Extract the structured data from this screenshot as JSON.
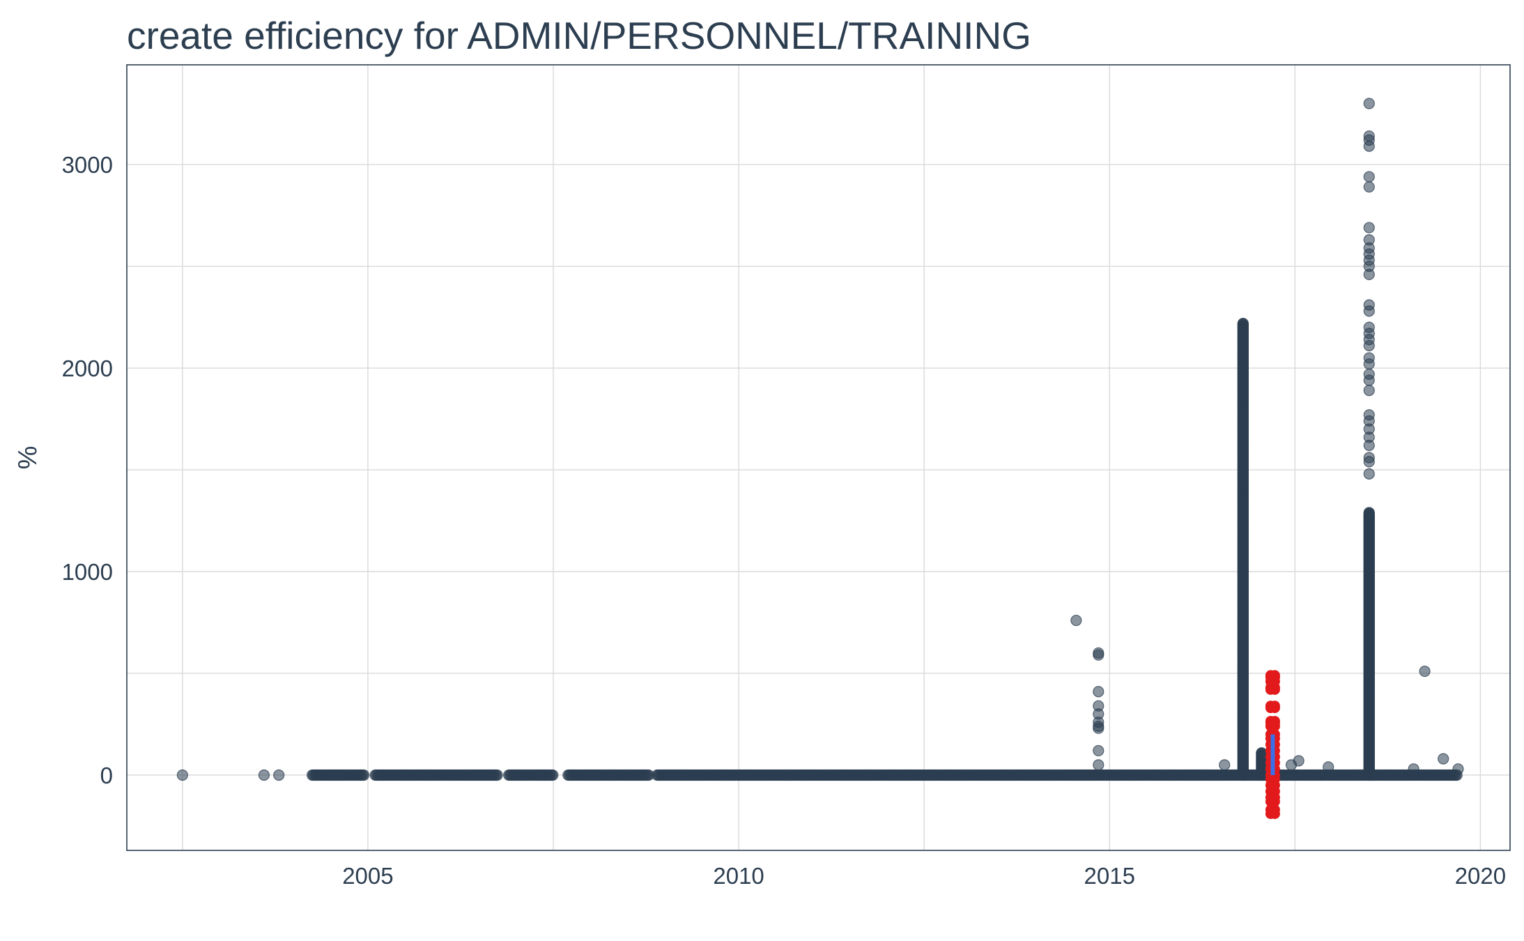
{
  "chart_data": {
    "type": "scatter",
    "title": "create efficiency for ADMIN/PERSONNEL/TRAINING",
    "xlabel": "",
    "ylabel": "%",
    "xlim": [
      2001.75,
      2020.4
    ],
    "ylim": [
      -370,
      3490
    ],
    "x_ticks": [
      2005,
      2010,
      2015,
      2020
    ],
    "x_tick_labels": [
      "2005",
      "2010",
      "2015",
      "2020"
    ],
    "y_ticks": [
      0,
      1000,
      2000,
      3000
    ],
    "y_tick_labels": [
      "0",
      "1000",
      "2000",
      "3000"
    ],
    "grid": true,
    "legend": "none",
    "colors": {
      "points": "#2c3e50",
      "highlight_points": "#e31a1c",
      "highlight_line": "#3a6fe8",
      "grid": "#d9d9d9",
      "text": "#2c3e50"
    },
    "series": [
      {
        "style": "points",
        "isolated_points": [
          [
            2002.5,
            0
          ],
          [
            2003.6,
            0
          ],
          [
            2003.8,
            0
          ],
          [
            2014.55,
            760
          ],
          [
            2014.85,
            600
          ],
          [
            2014.85,
            590
          ],
          [
            2014.85,
            410
          ],
          [
            2014.85,
            340
          ],
          [
            2014.85,
            300
          ],
          [
            2014.85,
            260
          ],
          [
            2014.85,
            240
          ],
          [
            2014.85,
            230
          ],
          [
            2014.85,
            120
          ],
          [
            2014.85,
            50
          ],
          [
            2016.55,
            50
          ],
          [
            2017.45,
            50
          ],
          [
            2017.55,
            70
          ],
          [
            2017.95,
            40
          ],
          [
            2019.25,
            510
          ],
          [
            2019.5,
            80
          ],
          [
            2019.1,
            30
          ],
          [
            2019.7,
            30
          ]
        ],
        "dense_ranges": [
          {
            "x_start": 2004.25,
            "x_end": 2004.95,
            "y": 0
          },
          {
            "x_start": 2005.1,
            "x_end": 2006.75,
            "y": 0
          },
          {
            "x_start": 2006.9,
            "x_end": 2007.5,
            "y": 0
          },
          {
            "x_start": 2007.7,
            "x_end": 2008.8,
            "y": 0
          },
          {
            "x_start": 2008.9,
            "x_end": 2019.7,
            "y": 0
          }
        ],
        "vertical_clusters": [
          {
            "x": 2016.8,
            "y_min": 0,
            "y_max": 2220
          },
          {
            "x": 2017.05,
            "y_min": 0,
            "y_max": 110
          },
          {
            "x": 2017.15,
            "y_min": 0,
            "y_max": 100
          },
          {
            "x": 2018.5,
            "y_min": 0,
            "y_max": 1290
          }
        ],
        "scattered_column": {
          "x": 2018.5,
          "y_values": [
            3300,
            3140,
            3120,
            3090,
            2940,
            2890,
            2690,
            2630,
            2590,
            2560,
            2530,
            2500,
            2460,
            2310,
            2280,
            2200,
            2170,
            2140,
            2110,
            2050,
            2020,
            1970,
            1940,
            1890,
            1770,
            1740,
            1700,
            1660,
            1620,
            1560,
            1540,
            1480
          ]
        }
      },
      {
        "style": "highlight",
        "x": 2017.2,
        "red_y_values": [
          490,
          480,
          460,
          430,
          420,
          340,
          330,
          265,
          255,
          240,
          200,
          180,
          150,
          120,
          90,
          60,
          30,
          0,
          -20,
          -50,
          -80,
          -110,
          -130,
          -170,
          -190
        ],
        "blue_segment": [
          0,
          200
        ]
      }
    ]
  }
}
